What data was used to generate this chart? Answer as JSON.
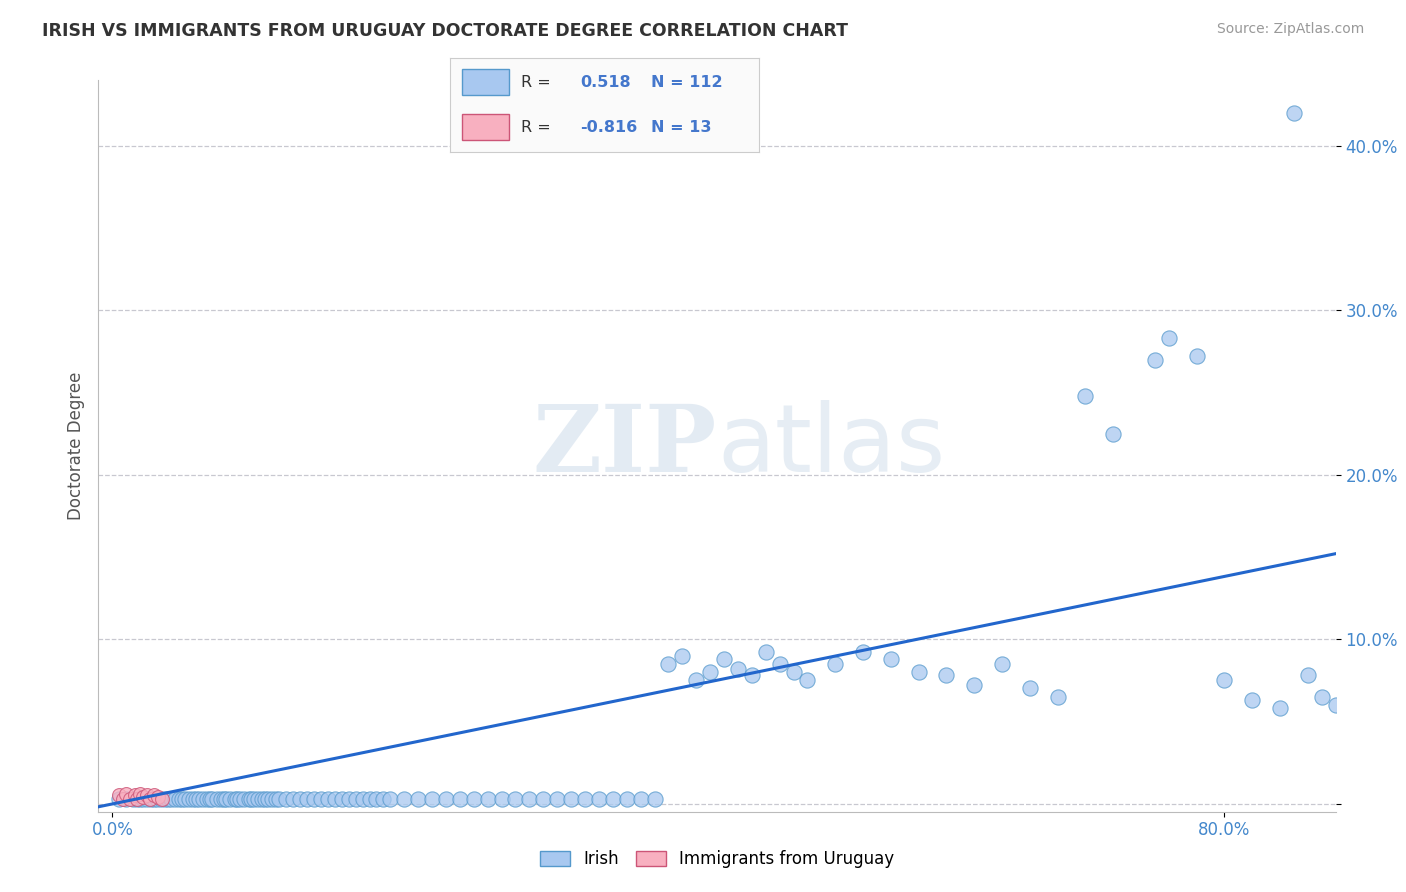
{
  "title": "IRISH VS IMMIGRANTS FROM URUGUAY DOCTORATE DEGREE CORRELATION CHART",
  "source_text": "Source: ZipAtlas.com",
  "ylabel": "Doctorate Degree",
  "xlim": [
    -0.01,
    0.88
  ],
  "ylim": [
    -0.005,
    0.44
  ],
  "y_ticks": [
    0.0,
    0.1,
    0.2,
    0.3,
    0.4
  ],
  "y_tick_labels": [
    "",
    "10.0%",
    "20.0%",
    "30.0%",
    "40.0%"
  ],
  "R_irish": 0.518,
  "N_irish": 112,
  "R_uruguay": -0.816,
  "N_uruguay": 13,
  "irish_color": "#a8c8f0",
  "irish_edge_color": "#5599cc",
  "uruguay_color": "#f8b0c0",
  "uruguay_edge_color": "#cc5577",
  "line_color": "#2266cc",
  "watermark_zip": "ZIP",
  "watermark_atlas": "atlas",
  "legend_R_color": "#4477cc",
  "background_color": "#ffffff",
  "grid_color": "#c8c8d0",
  "irish_x": [
    0.005,
    0.01,
    0.015,
    0.018,
    0.02,
    0.022,
    0.025,
    0.028,
    0.03,
    0.032,
    0.035,
    0.038,
    0.04,
    0.042,
    0.045,
    0.048,
    0.05,
    0.052,
    0.055,
    0.058,
    0.06,
    0.062,
    0.065,
    0.068,
    0.07,
    0.072,
    0.075,
    0.078,
    0.08,
    0.082,
    0.085,
    0.088,
    0.09,
    0.092,
    0.095,
    0.098,
    0.1,
    0.102,
    0.105,
    0.108,
    0.11,
    0.112,
    0.115,
    0.118,
    0.12,
    0.125,
    0.13,
    0.135,
    0.14,
    0.145,
    0.15,
    0.155,
    0.16,
    0.165,
    0.17,
    0.175,
    0.18,
    0.185,
    0.19,
    0.195,
    0.2,
    0.21,
    0.22,
    0.23,
    0.24,
    0.25,
    0.26,
    0.27,
    0.28,
    0.29,
    0.3,
    0.31,
    0.32,
    0.33,
    0.34,
    0.35,
    0.36,
    0.37,
    0.38,
    0.39,
    0.4,
    0.41,
    0.42,
    0.43,
    0.44,
    0.45,
    0.46,
    0.47,
    0.48,
    0.49,
    0.5,
    0.52,
    0.54,
    0.56,
    0.58,
    0.6,
    0.62,
    0.64,
    0.66,
    0.68,
    0.7,
    0.72,
    0.75,
    0.76,
    0.78,
    0.8,
    0.82,
    0.84,
    0.85,
    0.86,
    0.87,
    0.88
  ],
  "irish_y": [
    0.003,
    0.003,
    0.003,
    0.003,
    0.003,
    0.003,
    0.003,
    0.003,
    0.003,
    0.003,
    0.003,
    0.003,
    0.003,
    0.003,
    0.003,
    0.003,
    0.003,
    0.003,
    0.003,
    0.003,
    0.003,
    0.003,
    0.003,
    0.003,
    0.003,
    0.003,
    0.003,
    0.003,
    0.003,
    0.003,
    0.003,
    0.003,
    0.003,
    0.003,
    0.003,
    0.003,
    0.003,
    0.003,
    0.003,
    0.003,
    0.003,
    0.003,
    0.003,
    0.003,
    0.003,
    0.003,
    0.003,
    0.003,
    0.003,
    0.003,
    0.003,
    0.003,
    0.003,
    0.003,
    0.003,
    0.003,
    0.003,
    0.003,
    0.003,
    0.003,
    0.003,
    0.003,
    0.003,
    0.003,
    0.003,
    0.003,
    0.003,
    0.003,
    0.003,
    0.003,
    0.003,
    0.003,
    0.003,
    0.003,
    0.003,
    0.003,
    0.003,
    0.003,
    0.003,
    0.003,
    0.085,
    0.09,
    0.075,
    0.08,
    0.088,
    0.082,
    0.078,
    0.092,
    0.085,
    0.08,
    0.075,
    0.085,
    0.092,
    0.088,
    0.08,
    0.078,
    0.072,
    0.085,
    0.07,
    0.065,
    0.248,
    0.225,
    0.27,
    0.283,
    0.272,
    0.075,
    0.063,
    0.058,
    0.42,
    0.078,
    0.065,
    0.06
  ],
  "uruguay_x": [
    0.005,
    0.008,
    0.01,
    0.013,
    0.016,
    0.018,
    0.02,
    0.022,
    0.025,
    0.027,
    0.03,
    0.033,
    0.036
  ],
  "uruguay_y": [
    0.005,
    0.003,
    0.006,
    0.003,
    0.005,
    0.003,
    0.006,
    0.004,
    0.005,
    0.003,
    0.005,
    0.004,
    0.003
  ],
  "reg_line_x": [
    -0.01,
    0.88
  ],
  "reg_line_y": [
    -0.002,
    0.152
  ]
}
